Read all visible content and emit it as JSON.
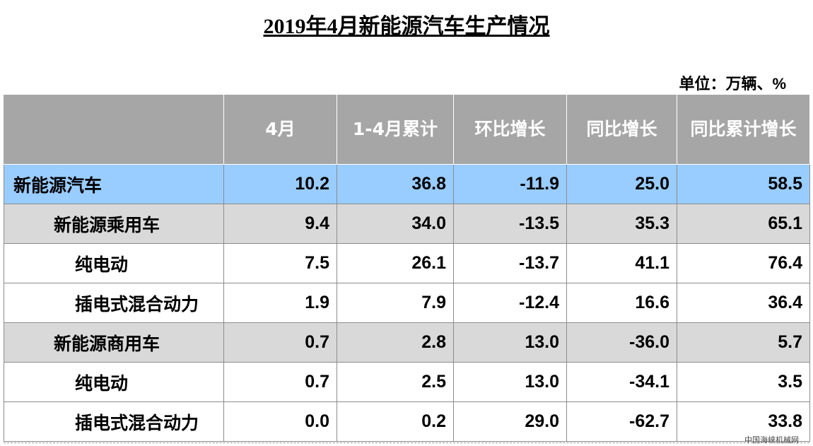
{
  "header": {
    "title": "2019年4月新能源汽车生产情况",
    "unit": "单位：万辆、%"
  },
  "table": {
    "columns": [
      "4月",
      "1-4月累计",
      "环比增长",
      "同比增长",
      "同比累计增长"
    ],
    "rows": [
      [
        "新能源汽车",
        "10.2",
        "36.8",
        "-11.9",
        "25.0",
        "58.5"
      ],
      [
        "新能源乘用车",
        "9.4",
        "34.0",
        "-13.5",
        "35.3",
        "65.1"
      ],
      [
        "纯电动",
        "7.5",
        "26.1",
        "-13.7",
        "41.1",
        "76.4"
      ],
      [
        "插电式混合动力",
        "1.9",
        "7.9",
        "-12.4",
        "16.6",
        "36.4"
      ],
      [
        "新能源商用车",
        "0.7",
        "2.8",
        "13.0",
        "-36.0",
        "5.7"
      ],
      [
        "纯电动",
        "0.7",
        "2.5",
        "13.0",
        "-34.1",
        "3.5"
      ],
      [
        "插电式混合动力",
        "0.0",
        "0.2",
        "29.0",
        "-62.7",
        "33.8"
      ]
    ]
  },
  "footer": {
    "watermark": "中国海峡机械网"
  }
}
